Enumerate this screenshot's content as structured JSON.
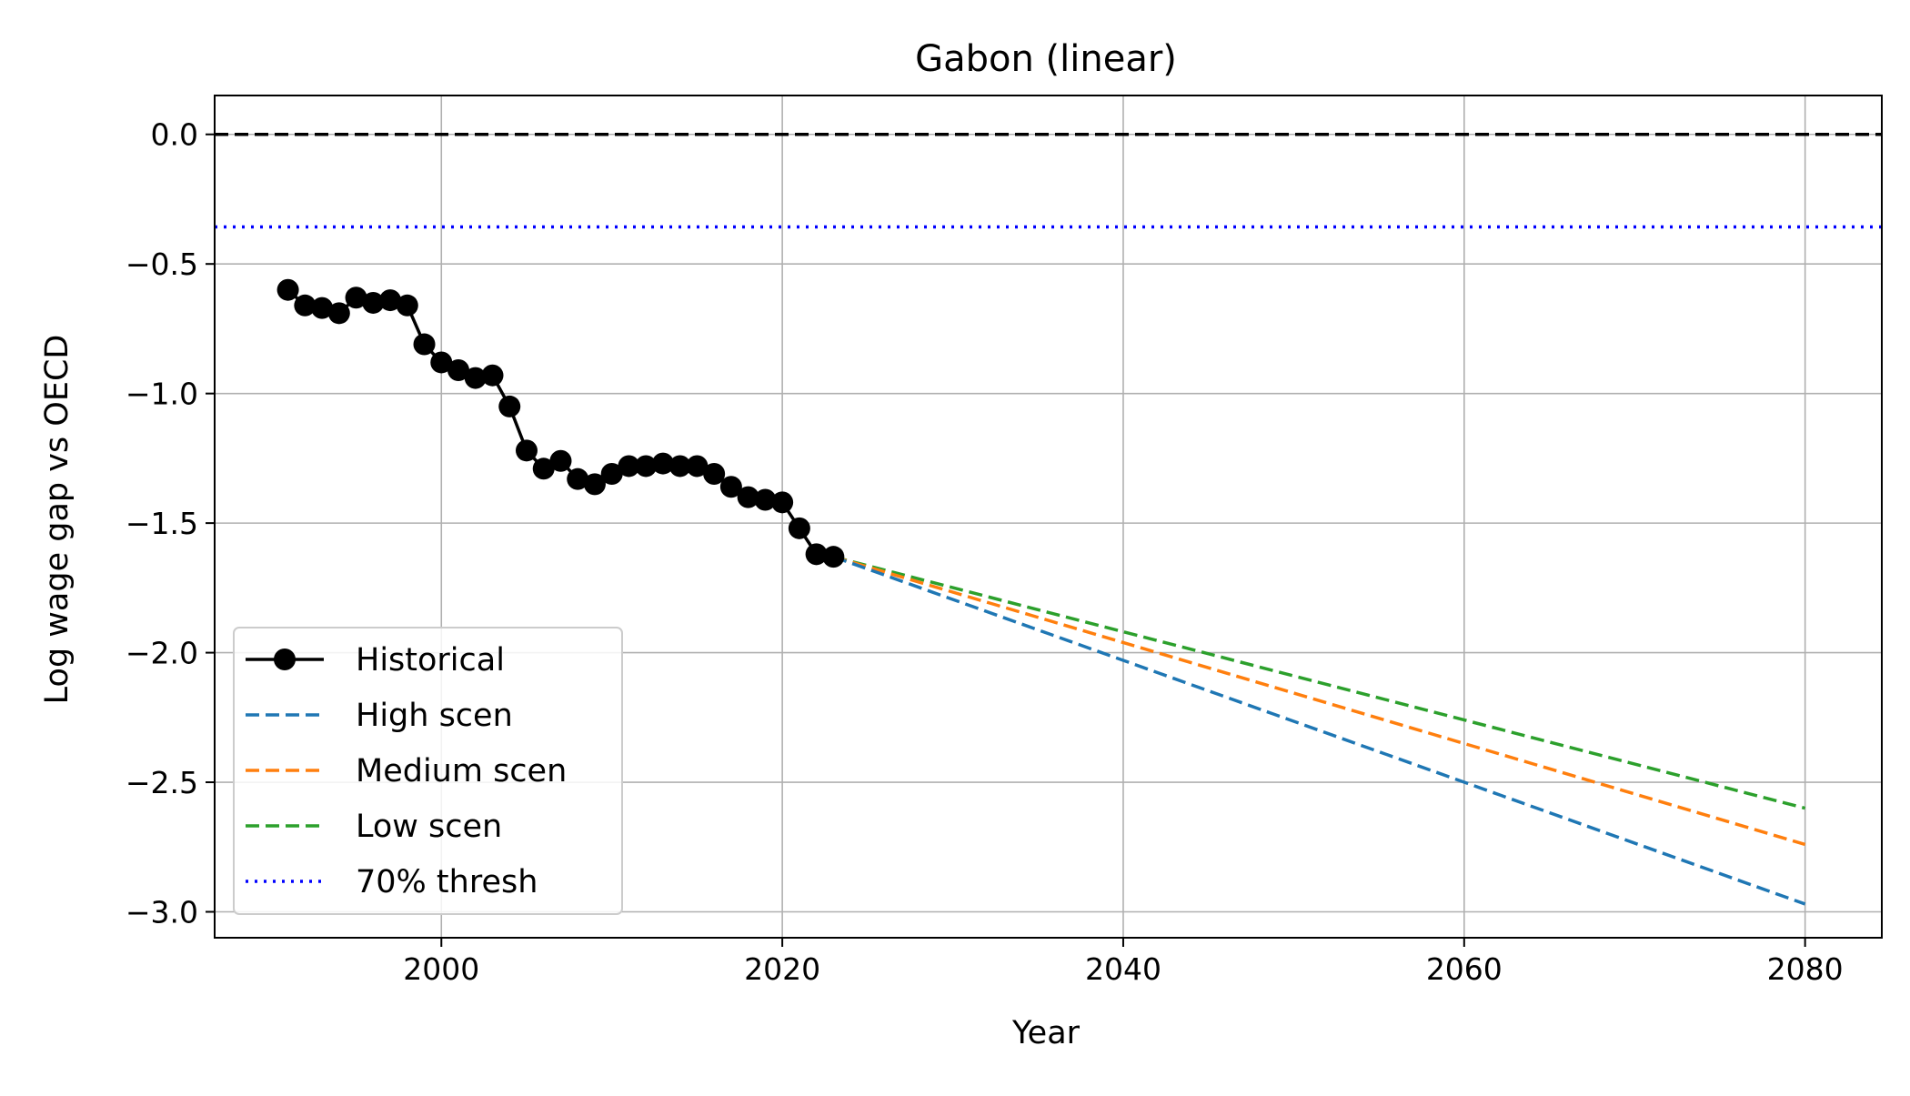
{
  "chart_data": {
    "type": "line",
    "title": "Gabon (linear)",
    "xlabel": "Year",
    "ylabel": "Log wage gap vs OECD",
    "xlim": [
      1986.7,
      2084.5
    ],
    "ylim": [
      -3.1,
      0.15
    ],
    "grid": true,
    "legend_position": "lower-left",
    "x_ticks": [
      {
        "value": 2000,
        "label": "2000"
      },
      {
        "value": 2020,
        "label": "2020"
      },
      {
        "value": 2040,
        "label": "2040"
      },
      {
        "value": 2060,
        "label": "2060"
      },
      {
        "value": 2080,
        "label": "2080"
      }
    ],
    "y_ticks": [
      {
        "value": 0.0,
        "label": "0.0"
      },
      {
        "value": -0.5,
        "label": "−0.5"
      },
      {
        "value": -1.0,
        "label": "−1.0"
      },
      {
        "value": -1.5,
        "label": "−1.5"
      },
      {
        "value": -2.0,
        "label": "−2.0"
      },
      {
        "value": -2.5,
        "label": "−2.5"
      },
      {
        "value": -3.0,
        "label": "−3.0"
      }
    ],
    "reference_lines": [
      {
        "name": "zero",
        "y": 0.0,
        "color": "#000000",
        "style": "dashed"
      },
      {
        "name": "70% thresh",
        "y": -0.357,
        "color": "#0000ff",
        "style": "dotted"
      }
    ],
    "series": [
      {
        "name": "Historical",
        "color": "#000000",
        "style": "solid-marker",
        "x": [
          1991,
          1992,
          1993,
          1994,
          1995,
          1996,
          1997,
          1998,
          1999,
          2000,
          2001,
          2002,
          2003,
          2004,
          2005,
          2006,
          2007,
          2008,
          2009,
          2010,
          2011,
          2012,
          2013,
          2014,
          2015,
          2016,
          2017,
          2018,
          2019,
          2020,
          2021,
          2022,
          2023
        ],
        "y": [
          -0.6,
          -0.66,
          -0.67,
          -0.69,
          -0.63,
          -0.65,
          -0.64,
          -0.66,
          -0.81,
          -0.88,
          -0.91,
          -0.94,
          -0.93,
          -1.05,
          -1.22,
          -1.29,
          -1.26,
          -1.33,
          -1.35,
          -1.31,
          -1.28,
          -1.28,
          -1.27,
          -1.28,
          -1.28,
          -1.31,
          -1.36,
          -1.4,
          -1.41,
          -1.42,
          -1.52,
          -1.62,
          -1.63
        ]
      },
      {
        "name": "High scen",
        "color": "#1f77b4",
        "style": "dashed",
        "x": [
          2023,
          2080
        ],
        "y": [
          -1.63,
          -2.97
        ]
      },
      {
        "name": "Medium scen",
        "color": "#ff7f0e",
        "style": "dashed",
        "x": [
          2023,
          2080
        ],
        "y": [
          -1.63,
          -2.74
        ]
      },
      {
        "name": "Low scen",
        "color": "#2ca02c",
        "style": "dashed",
        "x": [
          2023,
          2080
        ],
        "y": [
          -1.63,
          -2.6
        ]
      }
    ],
    "legend": [
      {
        "label": "Historical",
        "color": "#000000",
        "style": "solid-marker"
      },
      {
        "label": "High scen",
        "color": "#1f77b4",
        "style": "dashed"
      },
      {
        "label": "Medium scen",
        "color": "#ff7f0e",
        "style": "dashed"
      },
      {
        "label": "Low scen",
        "color": "#2ca02c",
        "style": "dashed"
      },
      {
        "label": "70% thresh",
        "color": "#0000ff",
        "style": "dotted"
      }
    ]
  }
}
